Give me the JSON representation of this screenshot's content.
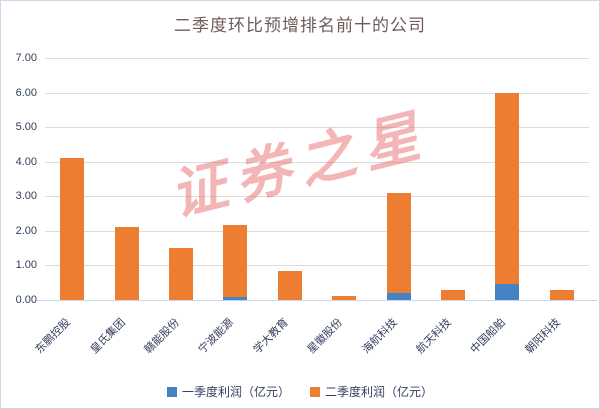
{
  "title": "二季度环比预增排名前十的公司",
  "watermark": "证券之星",
  "colors": {
    "q1_blue": "#4584c4",
    "q2_orange": "#ED7D31",
    "gridline": "#dcdcdc",
    "baseline": "#c6d5ea",
    "axis_text": "#34405c",
    "title_text": "#6f5b5b",
    "watermark_red": "rgba(228,90,90,0.45)"
  },
  "chart_data": {
    "type": "bar",
    "stacked": true,
    "title": "二季度环比预增排名前十的公司",
    "xlabel": "",
    "ylabel": "",
    "categories": [
      "东鹏控股",
      "皇氏集团",
      "赣能股份",
      "宁波能源",
      "学大教育",
      "星徽股份",
      "海航科技",
      "航天科技",
      "中国船舶",
      "朝阳科技"
    ],
    "series": [
      {
        "name": "一季度利润（亿元）",
        "color": "#4584c4",
        "values": [
          0,
          0,
          0,
          0.08,
          0,
          0,
          0.2,
          0,
          0.45,
          0
        ]
      },
      {
        "name": "二季度利润（亿元）",
        "color": "#ED7D31",
        "values": [
          4.1,
          2.1,
          1.5,
          2.1,
          0.85,
          0.12,
          2.9,
          0.3,
          5.55,
          0.3
        ]
      }
    ],
    "totals": [
      4.1,
      2.1,
      1.5,
      2.18,
      0.85,
      0.12,
      3.1,
      0.3,
      6.0,
      0.3
    ],
    "ylim": [
      0,
      7
    ],
    "ytick_step": 1,
    "ytick_labels": [
      "0.00",
      "1.00",
      "2.00",
      "3.00",
      "4.00",
      "5.00",
      "6.00",
      "7.00"
    ],
    "grid": true,
    "legend_position": "bottom"
  }
}
